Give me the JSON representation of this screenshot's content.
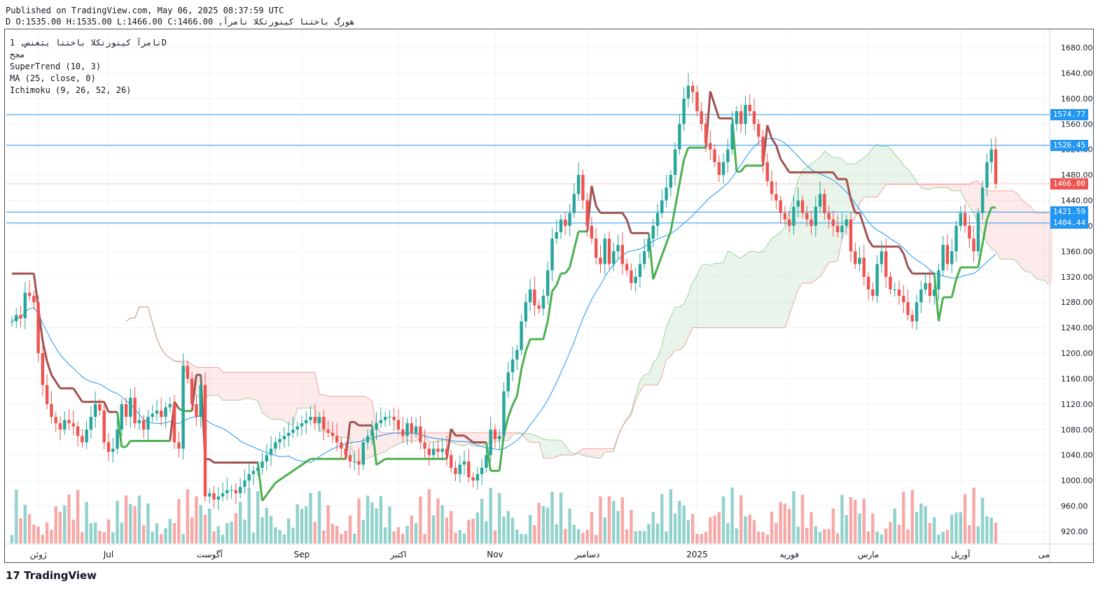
{
  "header": {
    "published": "Published on TradingView.com, May 06, 2025 08:37:59 UTC",
    "symbol_line": "هورگ باختنا کینورتکلا نامرآ, D O:1535.00 H:1535.00 L:1466.00 C:1466.00"
  },
  "legend": {
    "symbol": "نامرآ کینورتکلا باختنا یتعنص, 1D",
    "volume": "مجح",
    "supertrend": "SuperTrend (10, 3)",
    "ma": "MA (25, close, 0)",
    "ichimoku": "Ichimoku (9, 26, 52, 26)"
  },
  "brand": "TradingView",
  "colors": {
    "up": "#26a69a",
    "down": "#ef5350",
    "st_up": "#4caf50",
    "st_down": "#a0524f",
    "ma": "#2196f3",
    "hline": "#2196f3",
    "last": "#ef5350"
  },
  "price_tags": [
    {
      "label": "1574.77",
      "price": 1574.77,
      "color": "#2196f3"
    },
    {
      "label": "1526.45",
      "price": 1526.45,
      "color": "#2196f3"
    },
    {
      "label": "1466.00",
      "price": 1466.0,
      "color": "#ef5350"
    },
    {
      "label": "1421.59",
      "price": 1421.59,
      "color": "#2196f3"
    },
    {
      "label": "1404.44",
      "price": 1404.44,
      "color": "#2196f3"
    }
  ],
  "chart_data": {
    "type": "candlestick",
    "y_ticks": [
      920,
      960,
      1000,
      1040,
      1080,
      1120,
      1160,
      1200,
      1240,
      1280,
      1320,
      1360,
      1400,
      1440,
      1480,
      1520,
      1560,
      1600,
      1640,
      1680
    ],
    "ylim": [
      900,
      1700
    ],
    "x_labels": [
      {
        "label": "ژوئن",
        "index": 6
      },
      {
        "label": "Jul",
        "index": 22
      },
      {
        "label": "آگوست",
        "index": 45
      },
      {
        "label": "Sep",
        "index": 66
      },
      {
        "label": "اکتبر",
        "index": 88
      },
      {
        "label": "Nov",
        "index": 110
      },
      {
        "label": "دسامبر",
        "index": 131
      },
      {
        "label": "2025",
        "index": 156
      },
      {
        "label": "فوریه",
        "index": 177
      },
      {
        "label": "مارس",
        "index": 195
      },
      {
        "label": "آوریل",
        "index": 216
      },
      {
        "label": "می",
        "index": 235
      }
    ],
    "horizontal_lines": [
      1574.77,
      1526.45,
      1421.59,
      1404.44
    ],
    "last_price": 1466.0,
    "close": [
      1250,
      1260,
      1255,
      1295,
      1290,
      1280,
      1200,
      1150,
      1120,
      1100,
      1090,
      1080,
      1095,
      1090,
      1085,
      1070,
      1060,
      1080,
      1100,
      1120,
      1110,
      1060,
      1045,
      1050,
      1080,
      1120,
      1100,
      1130,
      1090,
      1095,
      1080,
      1100,
      1105,
      1110,
      1100,
      1115,
      1120,
      1060,
      1050,
      1180,
      1160,
      1120,
      1100,
      1150,
      975,
      980,
      970,
      975,
      980,
      985,
      985,
      980,
      990,
      1000,
      1010,
      1015,
      1020,
      1030,
      1040,
      1050,
      1060,
      1065,
      1070,
      1075,
      1080,
      1085,
      1090,
      1095,
      1100,
      1090,
      1100,
      1080,
      1075,
      1070,
      1060,
      1050,
      1040,
      1030,
      1030,
      1025,
      1060,
      1070,
      1080,
      1090,
      1095,
      1100,
      1100,
      1095,
      1080,
      1070,
      1090,
      1075,
      1085,
      1060,
      1050,
      1040,
      1050,
      1045,
      1050,
      1040,
      1020,
      1010,
      1025,
      1030,
      1005,
      1000,
      1010,
      1020,
      1040,
      1080,
      1065,
      1070,
      1140,
      1170,
      1190,
      1205,
      1250,
      1280,
      1300,
      1275,
      1270,
      1290,
      1330,
      1380,
      1390,
      1410,
      1400,
      1420,
      1450,
      1480,
      1440,
      1400,
      1380,
      1350,
      1340,
      1380,
      1340,
      1360,
      1370,
      1340,
      1330,
      1310,
      1320,
      1340,
      1360,
      1380,
      1400,
      1420,
      1440,
      1460,
      1480,
      1520,
      1560,
      1600,
      1620,
      1610,
      1580,
      1560,
      1530,
      1520,
      1500,
      1480,
      1500,
      1520,
      1560,
      1580,
      1560,
      1590,
      1580,
      1560,
      1540,
      1500,
      1470,
      1450,
      1440,
      1420,
      1410,
      1400,
      1430,
      1440,
      1420,
      1410,
      1400,
      1430,
      1450,
      1420,
      1410,
      1400,
      1390,
      1400,
      1410,
      1360,
      1340,
      1350,
      1320,
      1300,
      1290,
      1340,
      1360,
      1320,
      1300,
      1300,
      1290,
      1280,
      1260,
      1250,
      1280,
      1300,
      1310,
      1290,
      1300,
      1330,
      1370,
      1340,
      1360,
      1400,
      1420,
      1400,
      1380,
      1360,
      1420,
      1460,
      1500,
      1520,
      1466
    ],
    "volume_max": 1,
    "series": [
      {
        "name": "SuperTrend (10, 3)"
      },
      {
        "name": "MA (25, close, 0)"
      },
      {
        "name": "Ichimoku (9, 26, 52, 26)"
      }
    ]
  }
}
